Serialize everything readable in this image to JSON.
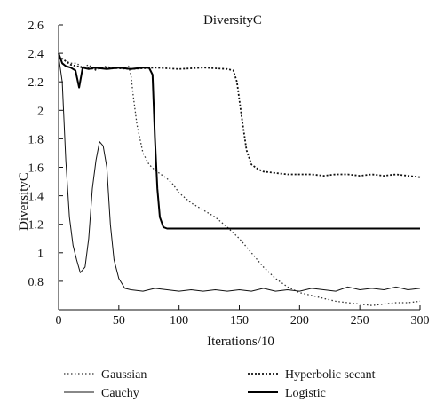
{
  "chart_data": {
    "type": "line",
    "title": "DiversityC",
    "xlabel": "Iterations/10",
    "ylabel": "DiversityC",
    "xlim": [
      0,
      300
    ],
    "ylim": [
      0.6,
      2.6
    ],
    "x_ticks": [
      0,
      50,
      100,
      150,
      200,
      250,
      300
    ],
    "y_ticks": [
      0.8,
      1,
      1.2,
      1.4,
      1.6,
      1.8,
      2,
      2.2,
      2.4,
      2.6
    ],
    "grid": false,
    "legend": "bottom, two columns",
    "series": [
      {
        "name": "Gaussian",
        "style": "dotted-thin",
        "color": "#333333",
        "points": [
          [
            0,
            2.38
          ],
          [
            5,
            2.35
          ],
          [
            10,
            2.33
          ],
          [
            15,
            2.33
          ],
          [
            20,
            2.3
          ],
          [
            25,
            2.32
          ],
          [
            30,
            2.28
          ],
          [
            35,
            2.3
          ],
          [
            40,
            2.31
          ],
          [
            45,
            2.29
          ],
          [
            50,
            2.3
          ],
          [
            55,
            2.3
          ],
          [
            58,
            2.31
          ],
          [
            60,
            2.25
          ],
          [
            62,
            2.1
          ],
          [
            65,
            1.9
          ],
          [
            70,
            1.7
          ],
          [
            75,
            1.62
          ],
          [
            80,
            1.58
          ],
          [
            85,
            1.55
          ],
          [
            90,
            1.52
          ],
          [
            95,
            1.48
          ],
          [
            100,
            1.42
          ],
          [
            110,
            1.35
          ],
          [
            120,
            1.3
          ],
          [
            130,
            1.25
          ],
          [
            140,
            1.18
          ],
          [
            150,
            1.1
          ],
          [
            160,
            1.0
          ],
          [
            170,
            0.9
          ],
          [
            180,
            0.82
          ],
          [
            190,
            0.76
          ],
          [
            200,
            0.72
          ],
          [
            210,
            0.7
          ],
          [
            220,
            0.68
          ],
          [
            230,
            0.66
          ],
          [
            240,
            0.65
          ],
          [
            250,
            0.64
          ],
          [
            260,
            0.63
          ],
          [
            270,
            0.64
          ],
          [
            280,
            0.65
          ],
          [
            290,
            0.65
          ],
          [
            300,
            0.66
          ]
        ]
      },
      {
        "name": "Cauchy",
        "style": "solid-thin",
        "color": "#111111",
        "points": [
          [
            0,
            2.38
          ],
          [
            3,
            2.2
          ],
          [
            6,
            1.65
          ],
          [
            9,
            1.25
          ],
          [
            12,
            1.05
          ],
          [
            15,
            0.95
          ],
          [
            18,
            0.86
          ],
          [
            22,
            0.9
          ],
          [
            25,
            1.1
          ],
          [
            28,
            1.45
          ],
          [
            31,
            1.65
          ],
          [
            34,
            1.78
          ],
          [
            37,
            1.75
          ],
          [
            40,
            1.6
          ],
          [
            43,
            1.2
          ],
          [
            46,
            0.95
          ],
          [
            50,
            0.82
          ],
          [
            55,
            0.75
          ],
          [
            60,
            0.74
          ],
          [
            70,
            0.73
          ],
          [
            80,
            0.75
          ],
          [
            90,
            0.74
          ],
          [
            100,
            0.73
          ],
          [
            110,
            0.74
          ],
          [
            120,
            0.73
          ],
          [
            130,
            0.74
          ],
          [
            140,
            0.73
          ],
          [
            150,
            0.74
          ],
          [
            160,
            0.73
          ],
          [
            170,
            0.75
          ],
          [
            180,
            0.73
          ],
          [
            190,
            0.74
          ],
          [
            200,
            0.73
          ],
          [
            210,
            0.75
          ],
          [
            220,
            0.74
          ],
          [
            230,
            0.73
          ],
          [
            240,
            0.76
          ],
          [
            250,
            0.74
          ],
          [
            260,
            0.75
          ],
          [
            270,
            0.74
          ],
          [
            280,
            0.76
          ],
          [
            290,
            0.74
          ],
          [
            300,
            0.75
          ]
        ]
      },
      {
        "name": "Hyperbolic secant",
        "style": "dotted-heavy",
        "color": "#111111",
        "points": [
          [
            0,
            2.38
          ],
          [
            10,
            2.32
          ],
          [
            20,
            2.3
          ],
          [
            30,
            2.29
          ],
          [
            40,
            2.3
          ],
          [
            60,
            2.29
          ],
          [
            80,
            2.3
          ],
          [
            100,
            2.29
          ],
          [
            120,
            2.3
          ],
          [
            140,
            2.29
          ],
          [
            145,
            2.28
          ],
          [
            148,
            2.2
          ],
          [
            152,
            1.95
          ],
          [
            156,
            1.72
          ],
          [
            160,
            1.62
          ],
          [
            165,
            1.59
          ],
          [
            170,
            1.57
          ],
          [
            180,
            1.56
          ],
          [
            190,
            1.55
          ],
          [
            200,
            1.55
          ],
          [
            210,
            1.55
          ],
          [
            220,
            1.54
          ],
          [
            230,
            1.55
          ],
          [
            240,
            1.55
          ],
          [
            250,
            1.54
          ],
          [
            260,
            1.55
          ],
          [
            270,
            1.54
          ],
          [
            280,
            1.55
          ],
          [
            290,
            1.54
          ],
          [
            300,
            1.53
          ]
        ]
      },
      {
        "name": "Logistic",
        "style": "solid-heavy",
        "color": "#000000",
        "points": [
          [
            0,
            2.4
          ],
          [
            3,
            2.33
          ],
          [
            6,
            2.31
          ],
          [
            10,
            2.3
          ],
          [
            14,
            2.28
          ],
          [
            17,
            2.16
          ],
          [
            20,
            2.3
          ],
          [
            25,
            2.29
          ],
          [
            30,
            2.3
          ],
          [
            40,
            2.29
          ],
          [
            50,
            2.3
          ],
          [
            60,
            2.29
          ],
          [
            70,
            2.3
          ],
          [
            75,
            2.3
          ],
          [
            78,
            2.25
          ],
          [
            80,
            1.8
          ],
          [
            82,
            1.45
          ],
          [
            84,
            1.25
          ],
          [
            87,
            1.18
          ],
          [
            90,
            1.17
          ],
          [
            100,
            1.17
          ],
          [
            120,
            1.17
          ],
          [
            140,
            1.17
          ],
          [
            160,
            1.17
          ],
          [
            180,
            1.17
          ],
          [
            200,
            1.17
          ],
          [
            220,
            1.17
          ],
          [
            240,
            1.17
          ],
          [
            260,
            1.17
          ],
          [
            280,
            1.17
          ],
          [
            300,
            1.17
          ]
        ]
      }
    ]
  }
}
